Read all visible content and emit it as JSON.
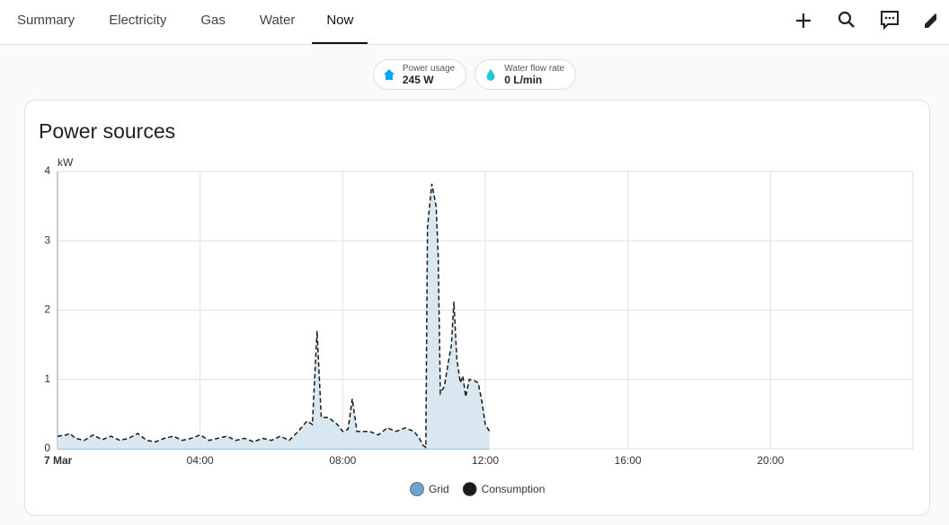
{
  "tabs": [
    {
      "label": "Summary"
    },
    {
      "label": "Electricity"
    },
    {
      "label": "Gas"
    },
    {
      "label": "Water"
    },
    {
      "label": "Now",
      "selected": true
    }
  ],
  "badges": [
    {
      "label": "Power usage",
      "value": "245 W",
      "icon_color": "#03a9f4"
    },
    {
      "label": "Water flow rate",
      "value": "0 L/min",
      "icon_color": "#26c6da"
    }
  ],
  "chart_data": {
    "type": "area",
    "title": "Power sources",
    "y_unit": "kW",
    "x": [
      0,
      0.25,
      0.35,
      0.5,
      0.75,
      1.0,
      1.25,
      1.5,
      1.75,
      2.0,
      2.25,
      2.5,
      2.75,
      3.0,
      3.25,
      3.5,
      3.75,
      4.0,
      4.25,
      4.5,
      4.75,
      5.0,
      5.25,
      5.5,
      5.75,
      6.0,
      6.25,
      6.5,
      6.75,
      7.0,
      7.15,
      7.28,
      7.4,
      7.6,
      7.85,
      8.0,
      8.15,
      8.27,
      8.4,
      8.75,
      9.0,
      9.25,
      9.5,
      9.75,
      10.0,
      10.15,
      10.25,
      10.33,
      10.38,
      10.5,
      10.62,
      10.68,
      10.74,
      10.85,
      10.95,
      11.05,
      11.12,
      11.2,
      11.3,
      11.37,
      11.45,
      11.55,
      11.7,
      11.8,
      11.9,
      12.0,
      12.12
    ],
    "series": [
      {
        "name": "Grid",
        "color": "#6fa2cf",
        "values": [
          0,
          0,
          0,
          0,
          0,
          0,
          0,
          0,
          0,
          0,
          0,
          0,
          0,
          0,
          0,
          0,
          0,
          0,
          0,
          0,
          0,
          0,
          0,
          0,
          0,
          0,
          0,
          0,
          0,
          0,
          0,
          0,
          0,
          0,
          0,
          0,
          0,
          0,
          0,
          0,
          0,
          0,
          0,
          0,
          0,
          0,
          0,
          0,
          0,
          0,
          0,
          0,
          0,
          0,
          0,
          0,
          0,
          0,
          0,
          0,
          0,
          0,
          0,
          0,
          0,
          0,
          0
        ]
      },
      {
        "name": "Consumption",
        "color": "#1a1a1a",
        "fill": "#d5e4f0",
        "line_style": "dashed",
        "values": [
          0.18,
          0.2,
          0.22,
          0.15,
          0.12,
          0.2,
          0.13,
          0.18,
          0.12,
          0.15,
          0.22,
          0.12,
          0.1,
          0.15,
          0.18,
          0.12,
          0.15,
          0.2,
          0.12,
          0.15,
          0.18,
          0.12,
          0.15,
          0.1,
          0.15,
          0.12,
          0.18,
          0.12,
          0.25,
          0.4,
          0.35,
          1.7,
          0.45,
          0.45,
          0.35,
          0.25,
          0.28,
          0.72,
          0.25,
          0.25,
          0.2,
          0.3,
          0.25,
          0.3,
          0.25,
          0.15,
          0.05,
          0.02,
          3.2,
          3.82,
          3.5,
          2.8,
          0.8,
          0.9,
          1.2,
          1.5,
          2.12,
          1.3,
          0.95,
          1.05,
          0.75,
          1.0,
          0.98,
          0.95,
          0.7,
          0.35,
          0.25
        ]
      }
    ],
    "xlim": [
      0,
      24
    ],
    "xticks": [
      {
        "value": 0,
        "label": "7 Mar"
      },
      {
        "value": 4,
        "label": "04:00"
      },
      {
        "value": 8,
        "label": "08:00"
      },
      {
        "value": 12,
        "label": "12:00"
      },
      {
        "value": 16,
        "label": "16:00"
      },
      {
        "value": 20,
        "label": "20:00"
      }
    ],
    "ylim": [
      0,
      4
    ],
    "yticks": [
      0,
      1,
      2,
      3,
      4
    ],
    "grid": true
  }
}
